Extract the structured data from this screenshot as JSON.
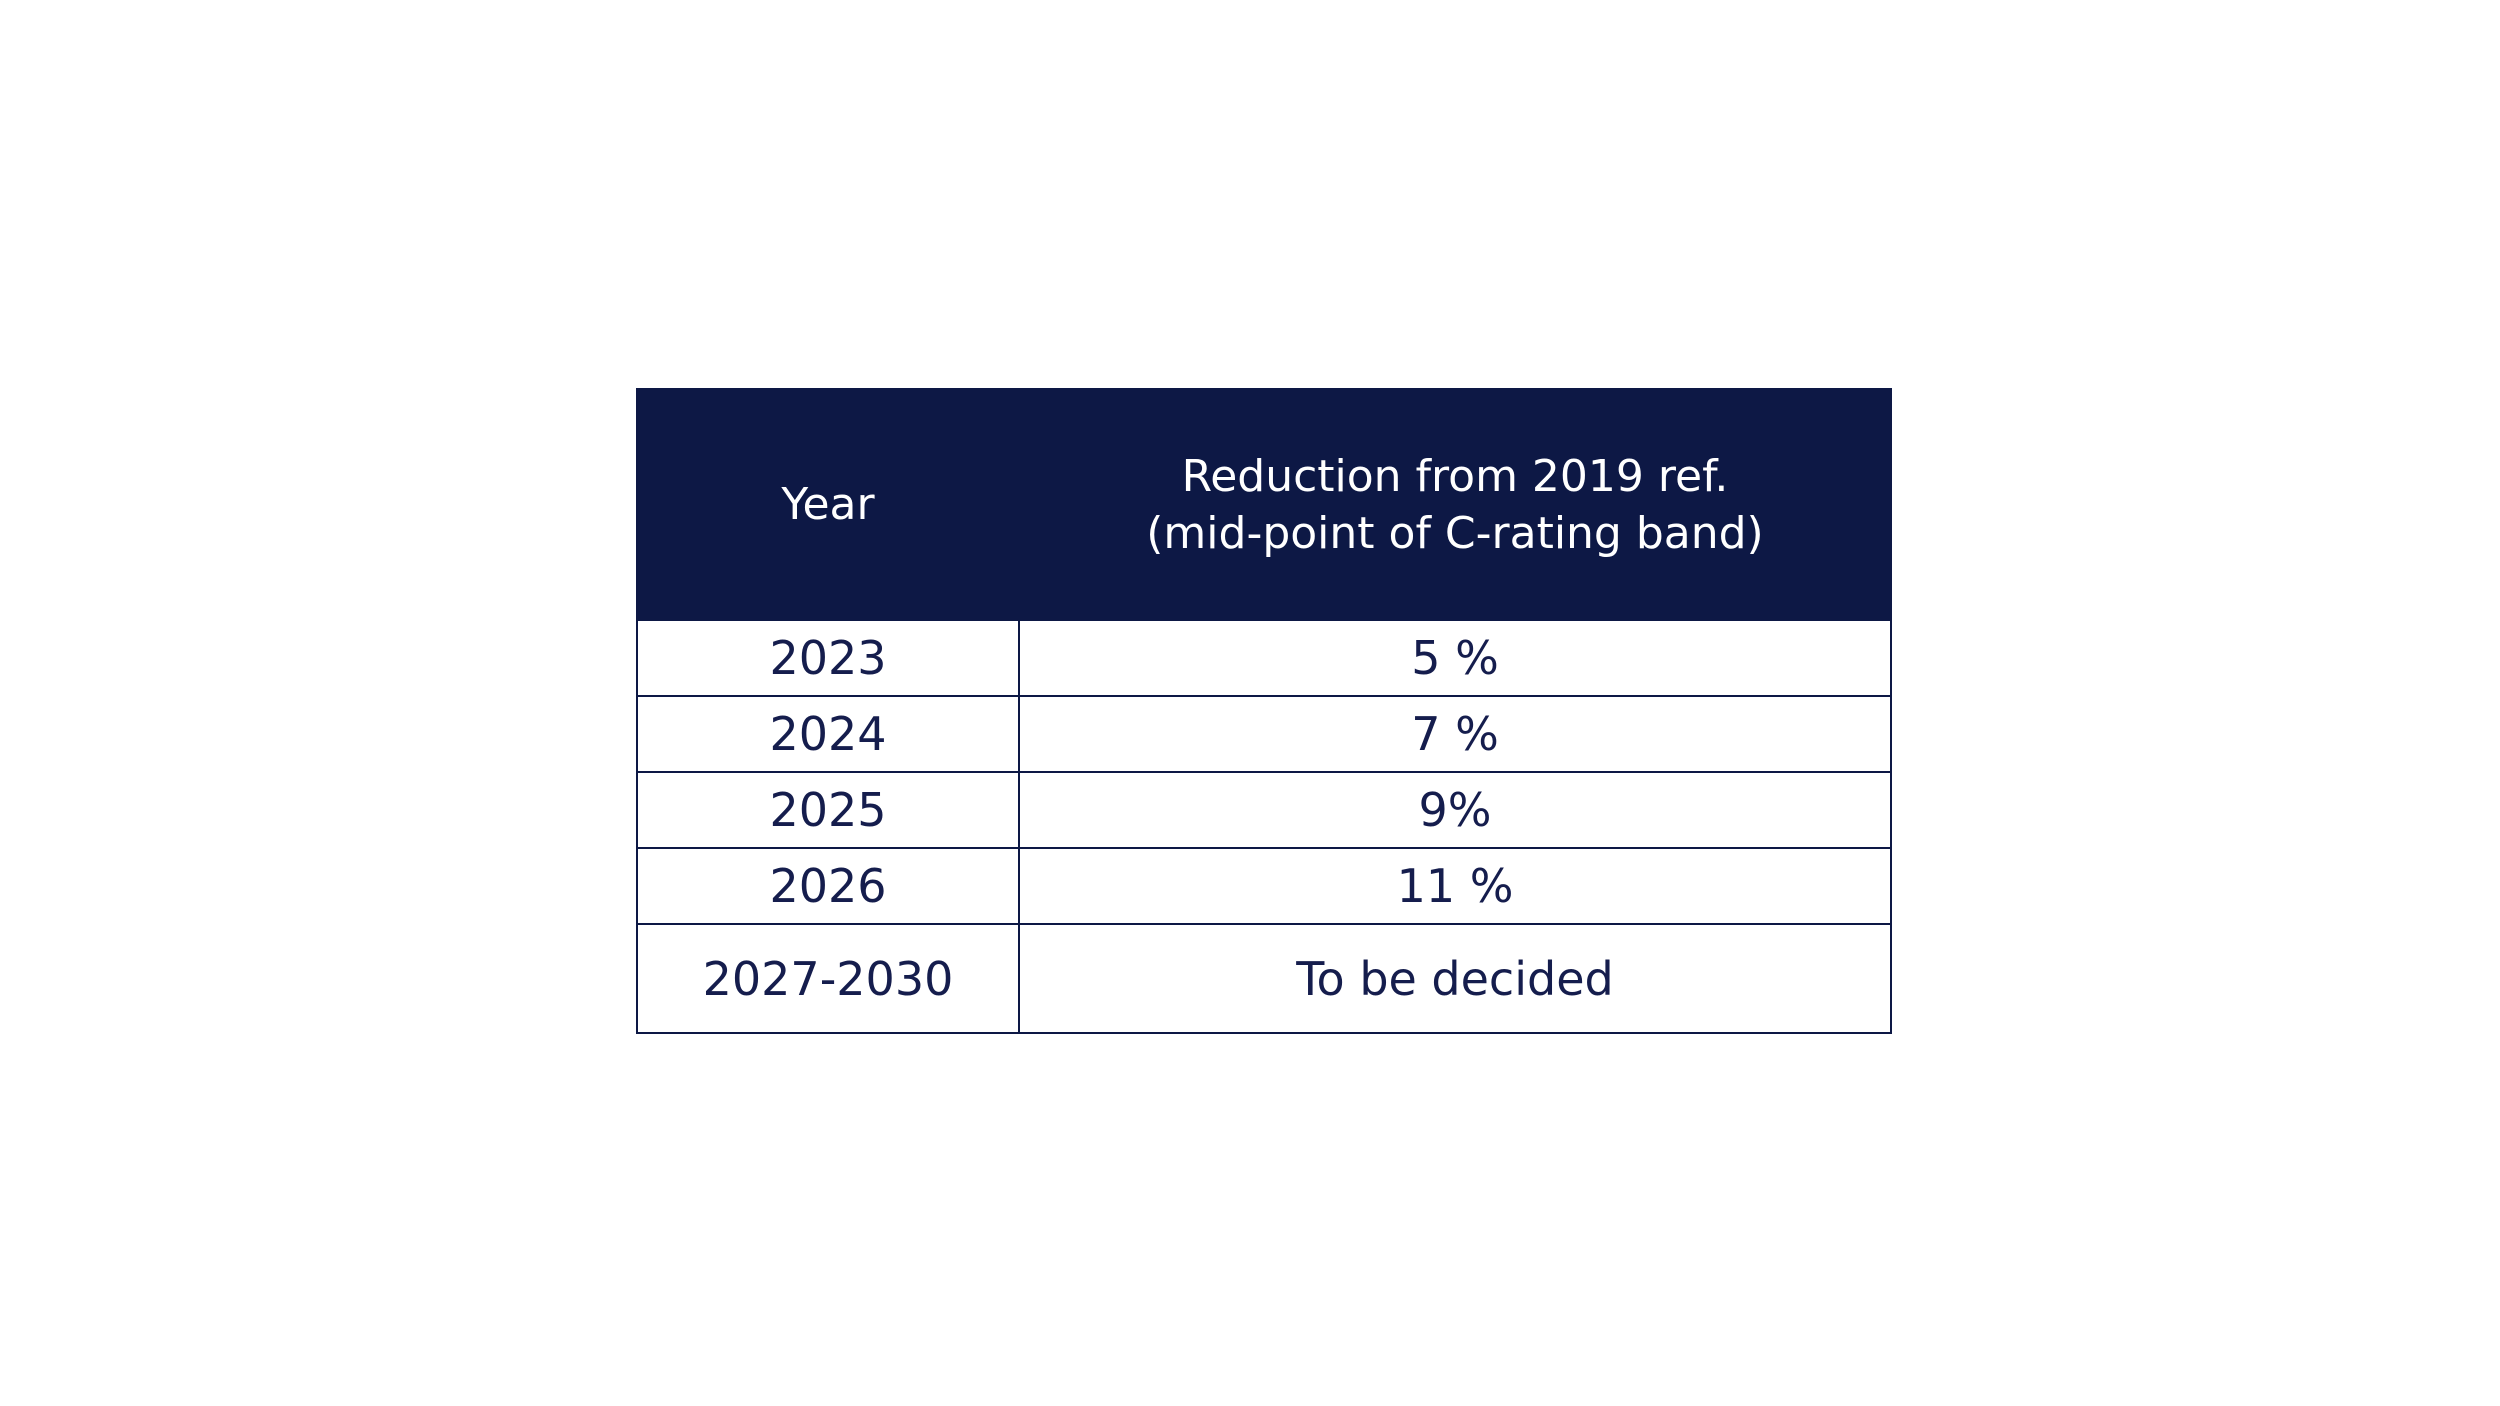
{
  "table": {
    "header": [
      "Year",
      [
        "Reduction from 2019 ref.",
        "(mid-point of C-rating band)"
      ]
    ],
    "rows": [
      [
        "2023",
        "5 %"
      ],
      [
        "2024",
        "7 %"
      ],
      [
        "2025",
        "9%"
      ],
      [
        "2026",
        "11 %"
      ],
      [
        "2027-2030",
        "To be decided"
      ]
    ]
  }
}
